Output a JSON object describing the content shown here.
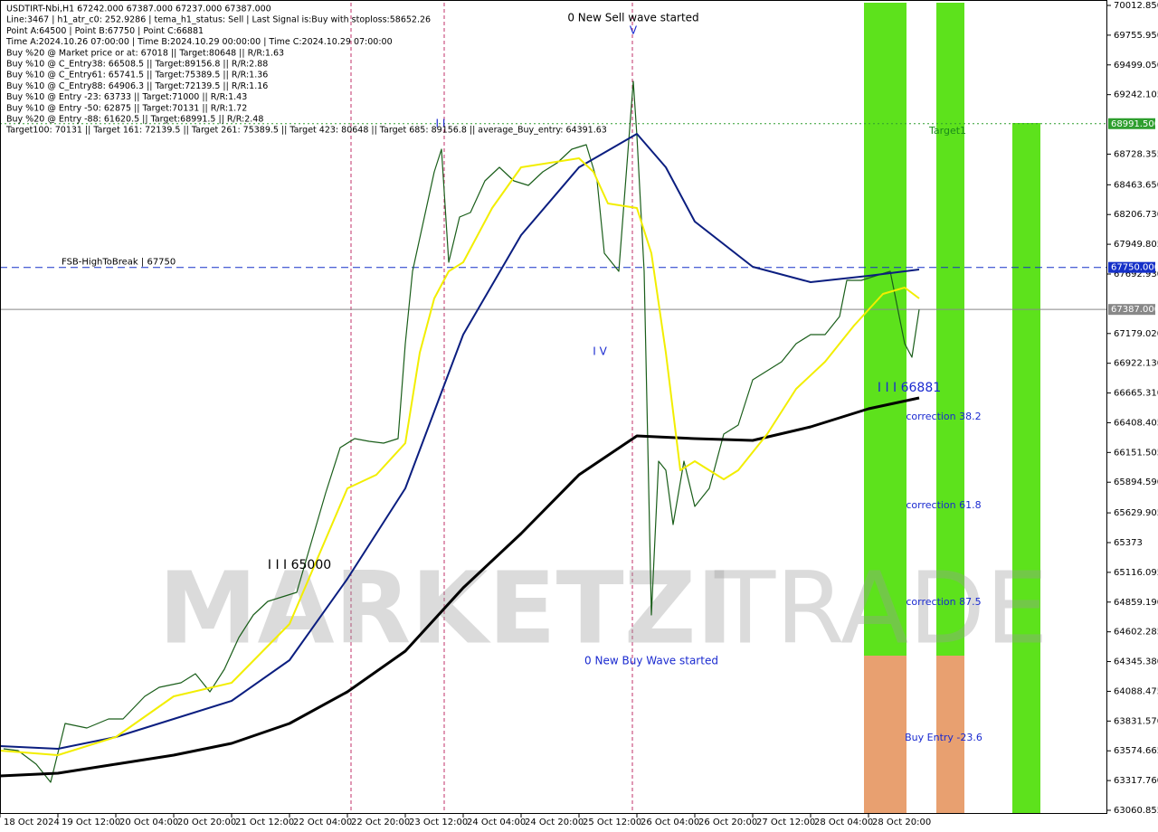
{
  "info_lines": [
    "USDTIRT-Nbi,H1  67242.000 67387.000 67237.000 67387.000",
    "Line:3467 | h1_atr_c0: 252.9286 | tema_h1_status: Sell | Last Signal is:Buy with stoploss:58652.26",
    "Point A:64500 | Point B:67750 | Point C:66881",
    "Time A:2024.10.26 07:00:00 | Time B:2024.10.29 00:00:00 | Time C:2024.10.29 07:00:00",
    "Buy %20 @ Market price or at: 67018 || Target:80648 || R/R:1.63",
    "Buy %10 @ C_Entry38: 66508.5 || Target:89156.8 || R/R:2.88",
    "Buy %10 @ C_Entry61: 65741.5 || Target:75389.5 || R/R:1.36",
    "Buy %10 @ C_Entry88: 64906.3 || Target:72139.5 || R/R:1.16",
    "Buy %10 @ Entry -23: 63733 || Target:71000 || R/R:1.43",
    "Buy %10 @ Entry -50: 62875 || Target:70131 || R/R:1.72",
    "Buy %20 @ Entry -88: 61620.5 || Target:68991.5 || R/R:2.48",
    "Target100: 70131 || Target 161: 72139.5 || Target 261: 75389.5 || Target 423: 80648 || Target 685: 89156.8 || average_Buy_entry: 64391.63"
  ],
  "watermark": [
    "MARKETZI",
    "TRADE"
  ],
  "chart_data": {
    "type": "line",
    "xlim": [
      0,
      305
    ],
    "ylim": [
      63029.6,
      70059.7
    ],
    "xticks": [
      {
        "value": 0,
        "label": "18 Oct 2024"
      },
      {
        "value": 16,
        "label": "19 Oct 12:00"
      },
      {
        "value": 32,
        "label": "20 Oct 04:00"
      },
      {
        "value": 48,
        "label": "20 Oct 20:00"
      },
      {
        "value": 64,
        "label": "21 Oct 12:00"
      },
      {
        "value": 80,
        "label": "22 Oct 04:00"
      },
      {
        "value": 96,
        "label": "22 Oct 20:00"
      },
      {
        "value": 112,
        "label": "23 Oct 12:00"
      },
      {
        "value": 128,
        "label": "24 Oct 04:00"
      },
      {
        "value": 144,
        "label": "24 Oct 20:00"
      },
      {
        "value": 160,
        "label": "25 Oct 12:00"
      },
      {
        "value": 176,
        "label": "26 Oct 04:00"
      },
      {
        "value": 192,
        "label": "26 Oct 20:00"
      },
      {
        "value": 208,
        "label": "27 Oct 12:00"
      },
      {
        "value": 224,
        "label": "28 Oct 04:00"
      },
      {
        "value": 240,
        "label": "28 Oct 20:00"
      }
    ],
    "yticks": [
      {
        "value": 70012.85,
        "label": "70012.850"
      },
      {
        "value": 69755.95,
        "label": "69755.950"
      },
      {
        "value": 69499.05,
        "label": "69499.050"
      },
      {
        "value": 69242.105,
        "label": "69242.105"
      },
      {
        "value": 68728.355,
        "label": "68728.355"
      },
      {
        "value": 68463.65,
        "label": "68463.650"
      },
      {
        "value": 68206.73,
        "label": "68206.730"
      },
      {
        "value": 67949.805,
        "label": "67949.805"
      },
      {
        "value": 67692.93,
        "label": "67692.930"
      },
      {
        "value": 67179.02,
        "label": "67179.020"
      },
      {
        "value": 66922.13,
        "label": "66922.130"
      },
      {
        "value": 66665.31,
        "label": "66665.310"
      },
      {
        "value": 66408.405,
        "label": "66408.405"
      },
      {
        "value": 66151.505,
        "label": "66151.505"
      },
      {
        "value": 65894.59,
        "label": "65894.590"
      },
      {
        "value": 65629.905,
        "label": "65629.905"
      },
      65373,
      {
        "value": 65116.095,
        "label": "65116.095"
      },
      {
        "value": 64859.19,
        "label": "64859.190"
      },
      {
        "value": 64602.285,
        "label": "64602.285"
      },
      {
        "value": 64345.38,
        "label": "64345.380"
      },
      {
        "value": 64088.475,
        "label": "64088.475"
      },
      {
        "value": 63831.57,
        "label": "63831.570"
      },
      {
        "value": 63574.665,
        "label": "63574.665"
      },
      {
        "value": 63317.76,
        "label": "63317.760"
      },
      {
        "value": 63060.855,
        "label": "63060.855"
      }
    ],
    "series": [
      {
        "color": "#1a5e1a",
        "width": 1.2,
        "x": [
          1,
          5,
          10,
          14,
          18,
          24,
          30,
          34,
          40,
          44,
          50,
          54,
          58,
          62,
          66,
          70,
          74,
          78,
          82,
          86,
          90,
          94,
          98,
          102,
          106,
          110,
          112,
          114,
          117,
          120,
          122,
          124,
          127,
          130,
          134,
          138,
          142,
          146,
          150,
          154,
          158,
          162,
          165,
          167,
          171,
          175,
          176,
          178,
          180,
          182,
          184,
          186,
          189,
          192,
          196,
          200,
          204,
          208,
          212,
          216,
          220,
          224,
          228,
          232,
          234,
          238,
          242,
          246,
          248,
          250,
          252,
          254
        ],
        "values": [
          63591.9,
          63576.3,
          63459.2,
          63302.9,
          63810.7,
          63771.6,
          63849.7,
          63849.7,
          64045.0,
          64123.1,
          64162.2,
          64240.3,
          64084.1,
          64279.3,
          64552.7,
          64748.0,
          64865.2,
          64904.2,
          64943.3,
          65372.9,
          65802.5,
          66193.1,
          66271.2,
          66247.8,
          66232.2,
          66271.2,
          67091.4,
          67716.3,
          68145.9,
          68575.6,
          68770.8,
          67794.4,
          68185.0,
          68224.0,
          68497.4,
          68614.6,
          68497.4,
          68458.4,
          68575.6,
          68653.7,
          68770.8,
          68809.9,
          68497.4,
          67872.5,
          67716.3,
          69356.7,
          68888.0,
          67716.3,
          64748.0,
          66075.9,
          65997.8,
          65529.1,
          66075.9,
          65685.4,
          65841.6,
          66310.3,
          66388.4,
          66779.0,
          66857.1,
          66935.2,
          67091.4,
          67169.5,
          67169.5,
          67325.7,
          67638.2,
          67638.2,
          67677.3,
          67716.3,
          67403.9,
          67091.4,
          66974.2,
          67387
        ]
      },
      {
        "color": "#000000",
        "width": 3,
        "x": [
          0,
          16,
          32,
          48,
          64,
          80,
          96,
          112,
          128,
          144,
          160,
          176,
          192,
          208,
          224,
          240,
          254
        ],
        "values": [
          63357.6,
          63381.0,
          63459.2,
          63537.3,
          63638.8,
          63810.7,
          64084.1,
          64435.6,
          64982.4,
          65451.0,
          65958.8,
          66294.7,
          66271.2,
          66255.6,
          66372.8,
          66529.0,
          66622.7
        ]
      },
      {
        "color": "#0b1e80",
        "width": 2,
        "x": [
          0,
          16,
          32,
          48,
          64,
          80,
          96,
          112,
          120,
          128,
          144,
          160,
          176,
          184,
          192,
          208,
          224,
          240,
          254
        ],
        "values": [
          63615.4,
          63591.9,
          63693.5,
          63849.7,
          64005.9,
          64357.5,
          65060.5,
          65841.6,
          66505.6,
          67169.5,
          68028.8,
          68614.6,
          68903.6,
          68614.6,
          68145.9,
          67755.4,
          67622.6,
          67677.3,
          67731.9
        ]
      },
      {
        "color": "#f2ee00",
        "width": 2,
        "x": [
          0,
          16,
          32,
          48,
          64,
          80,
          96,
          104,
          112,
          116,
          120,
          124,
          128,
          136,
          144,
          160,
          164,
          168,
          176,
          180,
          184,
          188,
          192,
          200,
          204,
          212,
          220,
          228,
          236,
          244,
          250,
          254
        ],
        "values": [
          63576.3,
          63537.3,
          63693.5,
          64045.0,
          64162.2,
          64669.9,
          65841.6,
          65958.8,
          66232.2,
          67013.3,
          67482.0,
          67716.3,
          67794.4,
          68263.1,
          68614.6,
          68692.7,
          68575.6,
          68302.2,
          68263.1,
          67872.5,
          67013.3,
          65997.8,
          66075.9,
          65919.7,
          65997.8,
          66310.3,
          66700.8,
          66935.2,
          67247.6,
          67521.0,
          67575.7,
          67482.0
        ]
      }
    ],
    "levels": [
      {
        "value": 68991.5,
        "label": "68991.500",
        "color": "#2e9e2e",
        "dash": "2,3",
        "text": "Target1"
      },
      {
        "value": 67750,
        "label": "67750.000",
        "color": "#1530c8",
        "dash": "8,5",
        "text": "FSB-HighToBreak | 67750"
      },
      {
        "value": 67387,
        "label": "67387.000",
        "color": "#888888",
        "dash": "none"
      }
    ],
    "annotations": [
      "0 New Sell wave started",
      "V",
      "I I",
      "I V",
      "0 New Buy Wave started",
      "I I I 65000",
      "I I I 66881",
      "correction 38.2",
      "correction 61.8",
      "correction 87.5",
      "Buy Entry -23.6"
    ]
  }
}
